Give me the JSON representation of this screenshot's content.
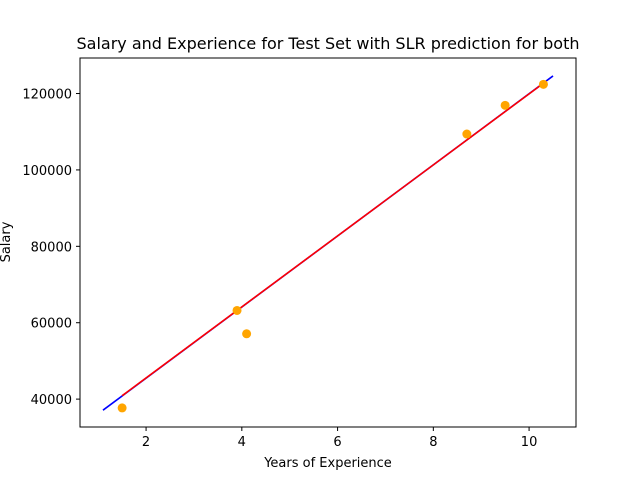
{
  "chart_data": {
    "type": "scatter",
    "title": "Salary and Experience for Test Set with SLR prediction for both",
    "xlabel": "Years of Experience",
    "ylabel": "Salary",
    "xlim": [
      0.62,
      10.98
    ],
    "ylim": [
      32700,
      129300
    ],
    "xticks": [
      2,
      4,
      6,
      8,
      10
    ],
    "yticks": [
      40000,
      60000,
      80000,
      100000,
      120000
    ],
    "grid": false,
    "series": [
      {
        "kind": "scatter",
        "color": "#ffa500",
        "x": [
          1.5,
          3.9,
          4.1,
          8.7,
          9.5,
          10.3
        ],
        "y": [
          37700,
          63200,
          57100,
          109400,
          116900,
          122400
        ]
      },
      {
        "kind": "line",
        "color": "#0000ff",
        "x": [
          1.1,
          10.5
        ],
        "y": [
          37100,
          124600
        ]
      },
      {
        "kind": "line",
        "color": "#ff0000",
        "x": [
          1.5,
          10.3
        ],
        "y": [
          40900,
          122700
        ]
      }
    ]
  }
}
